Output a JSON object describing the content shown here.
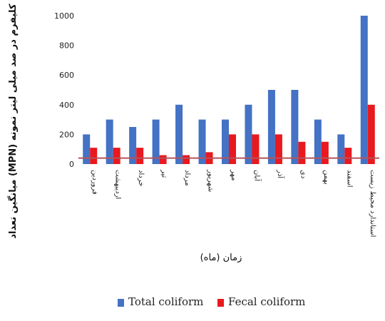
{
  "chart_data": {
    "type": "bar",
    "ylabel": "میانگین تعداد (MPN) کلیفرم در صد میلی لیتر نمونه",
    "xlabel": "زمان (ماه)",
    "ylim": [
      0,
      1000
    ],
    "yticks": [
      "0",
      "200",
      "400",
      "600",
      "800",
      "1000"
    ],
    "categories": [
      "فروردین",
      "اردیبهشت",
      "خرداد",
      "تیر",
      "مرداد",
      "شهریور",
      "مهر",
      "آبان",
      "آذر",
      "دی",
      "بهمن",
      "اسفند",
      "استاندارد محیط زیست"
    ],
    "series": [
      {
        "name": "Total coliform",
        "color": "#4472C4",
        "values": [
          200,
          300,
          250,
          300,
          400,
          300,
          300,
          400,
          500,
          500,
          300,
          200,
          1000
        ]
      },
      {
        "name": "Fecal coliform",
        "color": "#E8191F",
        "values": [
          110,
          110,
          110,
          60,
          60,
          80,
          200,
          200,
          200,
          150,
          150,
          110,
          400
        ]
      }
    ],
    "reference_line_value": 40,
    "reference_line_color": "#B5535A",
    "grid": false,
    "legend_position": "bottom"
  }
}
